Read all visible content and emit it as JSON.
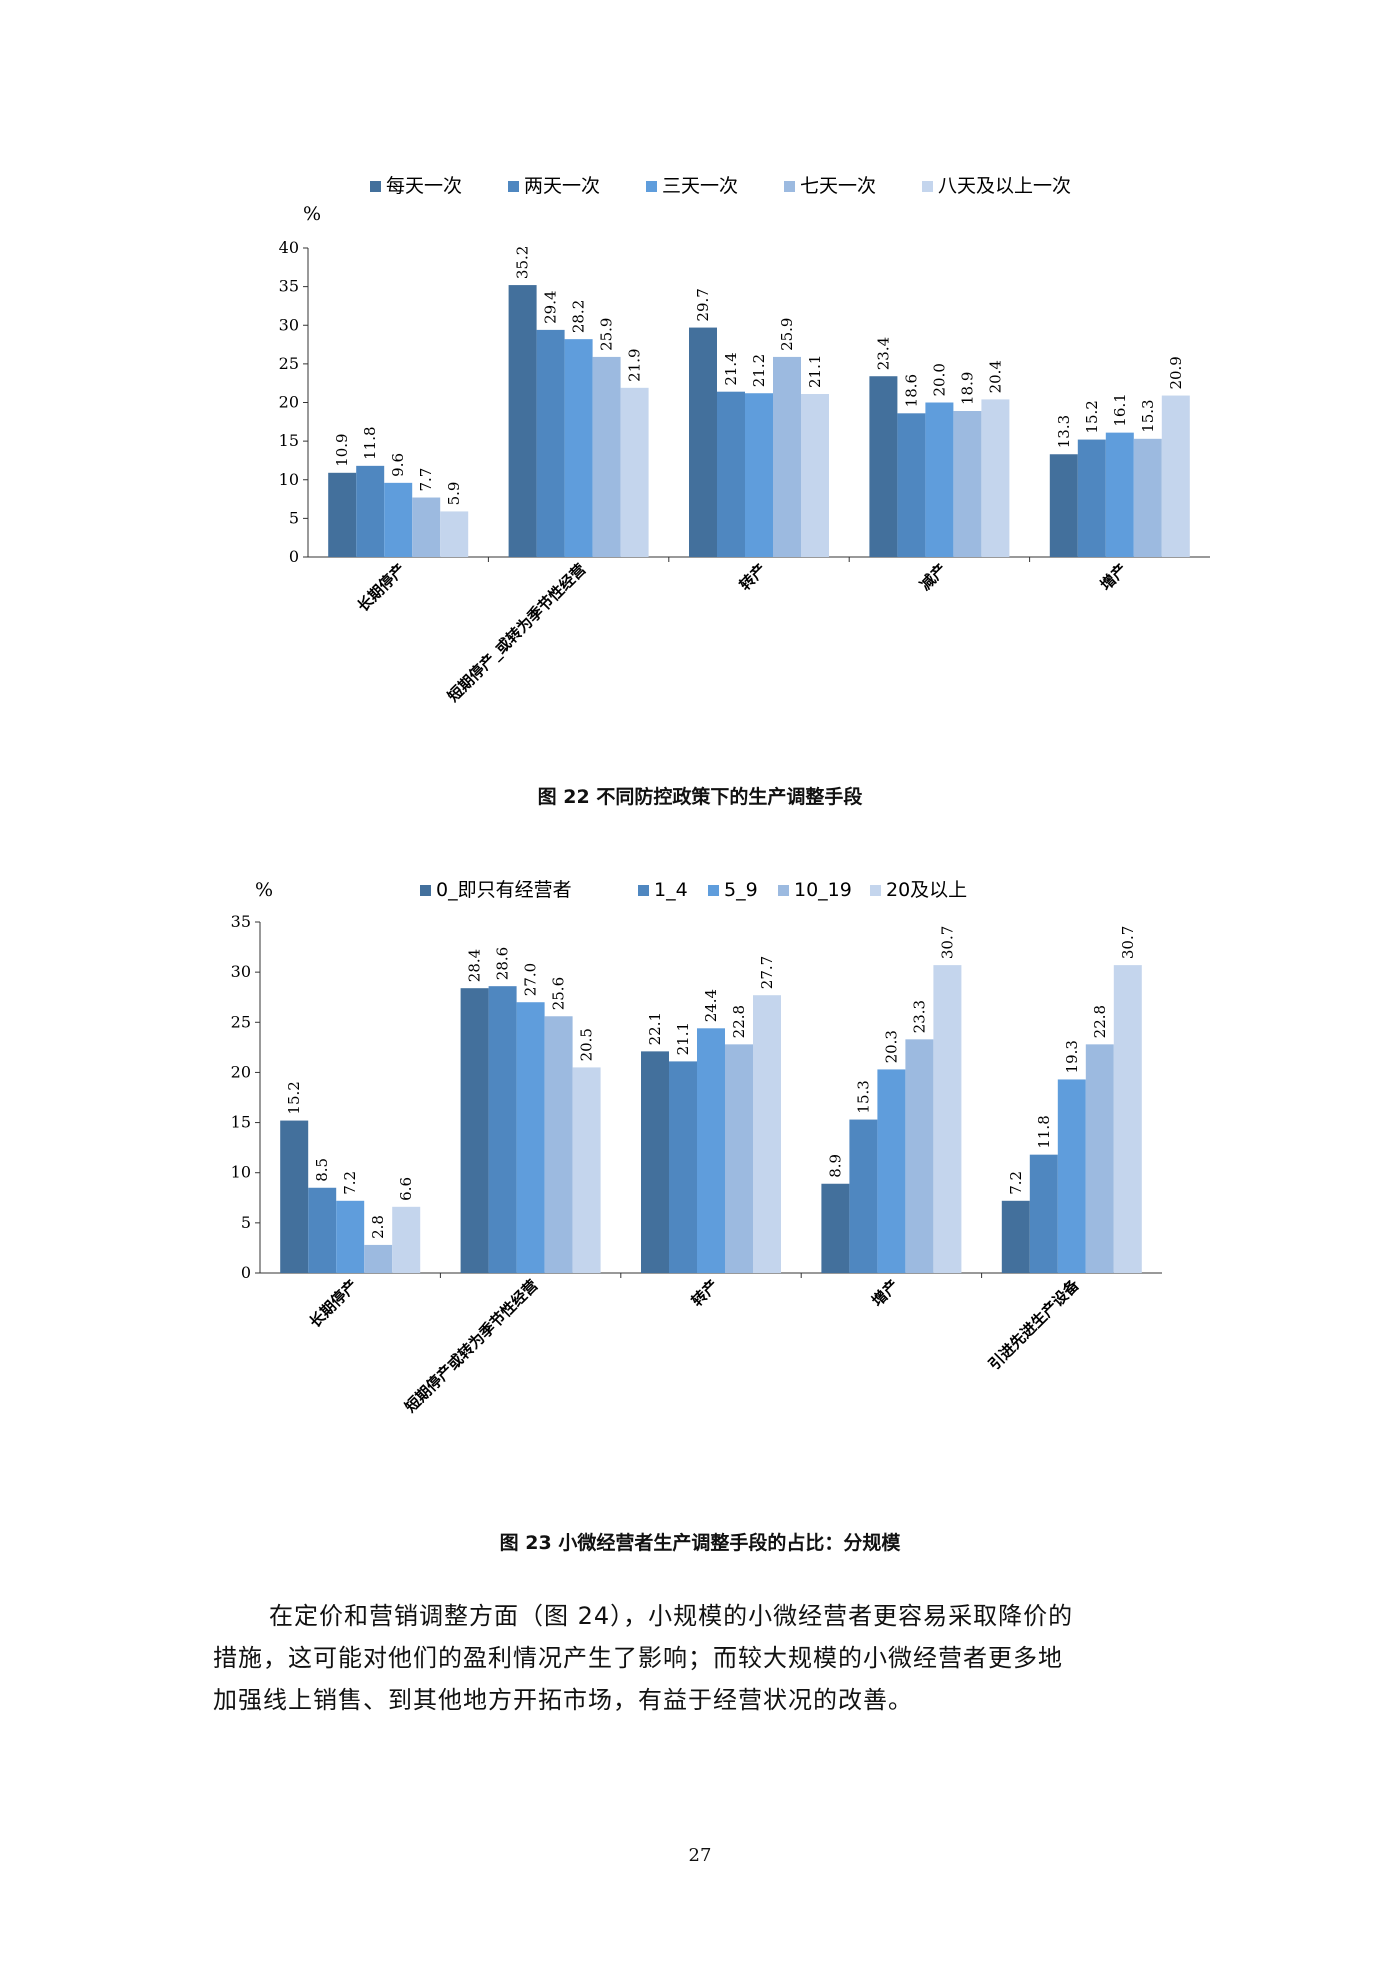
{
  "colors": [
    "#43709c",
    "#4f87c0",
    "#5f9ddc",
    "#9cbae0",
    "#c4d5ed"
  ],
  "charts": [
    {
      "type": "bar",
      "unit": "%",
      "ylim": [
        0,
        40
      ],
      "yticks": [
        "0",
        "5",
        "10",
        "15",
        "20",
        "25",
        "30",
        "35",
        "40"
      ],
      "legend": [
        "每天一次",
        "两天一次",
        "三天一次",
        "七天一次",
        "八天及以上一次"
      ],
      "categories": [
        "长期停产",
        "短期停产_或转为季节性经营",
        "转产",
        "减产",
        "增产"
      ],
      "values": [
        [
          "10.9",
          "11.8",
          "9.6",
          "7.7",
          "5.9"
        ],
        [
          "35.2",
          "29.4",
          "28.2",
          "25.9",
          "21.9"
        ],
        [
          "29.7",
          "21.4",
          "21.2",
          "25.9",
          "21.1"
        ],
        [
          "23.4",
          "18.6",
          "20.0",
          "18.9",
          "20.4"
        ],
        [
          "13.3",
          "15.2",
          "16.1",
          "15.3",
          "20.9"
        ]
      ],
      "caption": "图 22 不同防控政策下的生产调整手段"
    },
    {
      "type": "bar",
      "unit": "%",
      "ylim": [
        0,
        35
      ],
      "yticks": [
        "0",
        "5",
        "10",
        "15",
        "20",
        "25",
        "30",
        "35"
      ],
      "legend": [
        "0_即只有经营者",
        "1_4",
        "5_9",
        "10_19",
        "20及以上"
      ],
      "categories": [
        "长期停产",
        "短期停产或转为季节性经营",
        "转产",
        "增产",
        "引进先进生产设备"
      ],
      "values": [
        [
          "15.2",
          "8.5",
          "7.2",
          "2.8",
          "6.6"
        ],
        [
          "28.4",
          "28.6",
          "27.0",
          "25.6",
          "20.5"
        ],
        [
          "22.1",
          "21.1",
          "24.4",
          "22.8",
          "27.7"
        ],
        [
          "8.9",
          "15.3",
          "20.3",
          "23.3",
          "30.7"
        ],
        [
          "7.2",
          "11.8",
          "19.3",
          "22.8",
          "30.7"
        ]
      ],
      "caption": "图 23 小微经营者生产调整手段的占比：分规模"
    }
  ],
  "paragraph": [
    "在定价和营销调整方面（图 24），小规模的小微经营者更容易采取降价的",
    "措施，这可能对他们的盈利情况产生了影响；而较大规模的小微经营者更多地",
    "加强线上销售、到其他地方开拓市场，有益于经营状况的改善。"
  ],
  "page_number": "27"
}
